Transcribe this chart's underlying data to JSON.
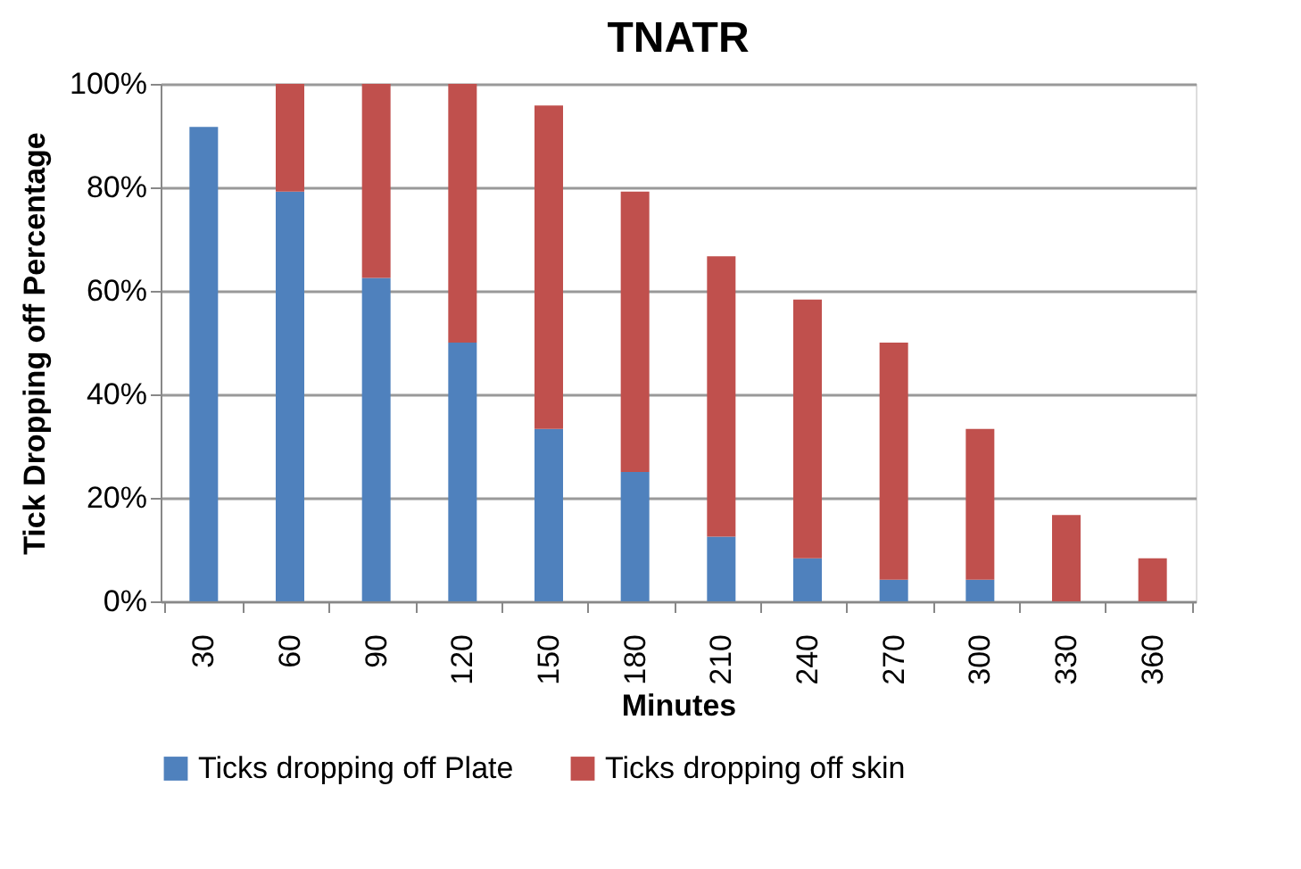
{
  "chart_data": {
    "type": "bar",
    "title": "TNATR",
    "xlabel": "Minutes",
    "ylabel": "Tick Dropping off Percentage",
    "categories": [
      "30",
      "60",
      "90",
      "120",
      "150",
      "180",
      "210",
      "240",
      "270",
      "300",
      "330",
      "360"
    ],
    "series": [
      {
        "name": "Ticks dropping off Plate",
        "color": "#4f81bd",
        "values": [
          91.7,
          79.2,
          62.5,
          50,
          33.3,
          25,
          12.5,
          8.3,
          4.2,
          4.2,
          0,
          0
        ]
      },
      {
        "name": "Ticks dropping off skin",
        "color": "#c0504d",
        "values": [
          0,
          20.8,
          37.5,
          50,
          62.5,
          54.2,
          54.2,
          50,
          45.8,
          29.1,
          16.7,
          8.3
        ]
      }
    ],
    "stacked": true,
    "ylim": [
      0,
      100
    ],
    "yticks": [
      {
        "value": 0,
        "label": "0%"
      },
      {
        "value": 20,
        "label": "20%"
      },
      {
        "value": 40,
        "label": "40%"
      },
      {
        "value": 60,
        "label": "60%"
      },
      {
        "value": 80,
        "label": "80%"
      },
      {
        "value": 100,
        "label": "100%"
      }
    ],
    "grid": "y",
    "legend": "bottom"
  }
}
